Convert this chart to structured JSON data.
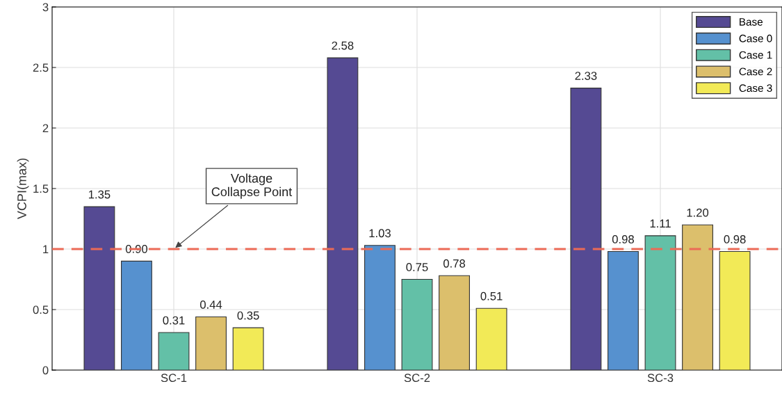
{
  "chart_data": {
    "type": "bar",
    "ylabel": "VCPI(max)",
    "categories": [
      "SC-1",
      "SC-2",
      "SC-3"
    ],
    "series": [
      {
        "name": "Base",
        "color": "#554a93",
        "values": [
          1.35,
          2.58,
          2.33
        ],
        "value_labels": [
          "1.35",
          "2.58",
          "2.33"
        ]
      },
      {
        "name": "Case 0",
        "color": "#5691cf",
        "values": [
          0.9,
          1.03,
          0.98
        ],
        "value_labels": [
          "0.90",
          "1.03",
          "0.98"
        ]
      },
      {
        "name": "Case 1",
        "color": "#63c0a7",
        "values": [
          0.31,
          0.75,
          1.11
        ],
        "value_labels": [
          "0.31",
          "0.75",
          "1.11"
        ]
      },
      {
        "name": "Case 2",
        "color": "#dcbf6c",
        "values": [
          0.44,
          0.78,
          1.2
        ],
        "value_labels": [
          "0.44",
          "0.78",
          "1.20"
        ]
      },
      {
        "name": "Case 3",
        "color": "#f2ea57",
        "values": [
          0.35,
          0.51,
          0.98
        ],
        "value_labels": [
          "0.35",
          "0.51",
          "0.98"
        ]
      }
    ],
    "ylim": [
      0,
      3
    ],
    "yticks": [
      0,
      0.5,
      1,
      1.5,
      2,
      2.5,
      3
    ],
    "ref_lines": [
      {
        "axis": "y",
        "value": 1,
        "color": "#eb6a56",
        "line_style": "dashed"
      }
    ],
    "annotations": [
      {
        "text": "Voltage\nCollapse Point",
        "x": "SC-1",
        "y": 1
      }
    ],
    "grid": true,
    "legend": "top right"
  }
}
